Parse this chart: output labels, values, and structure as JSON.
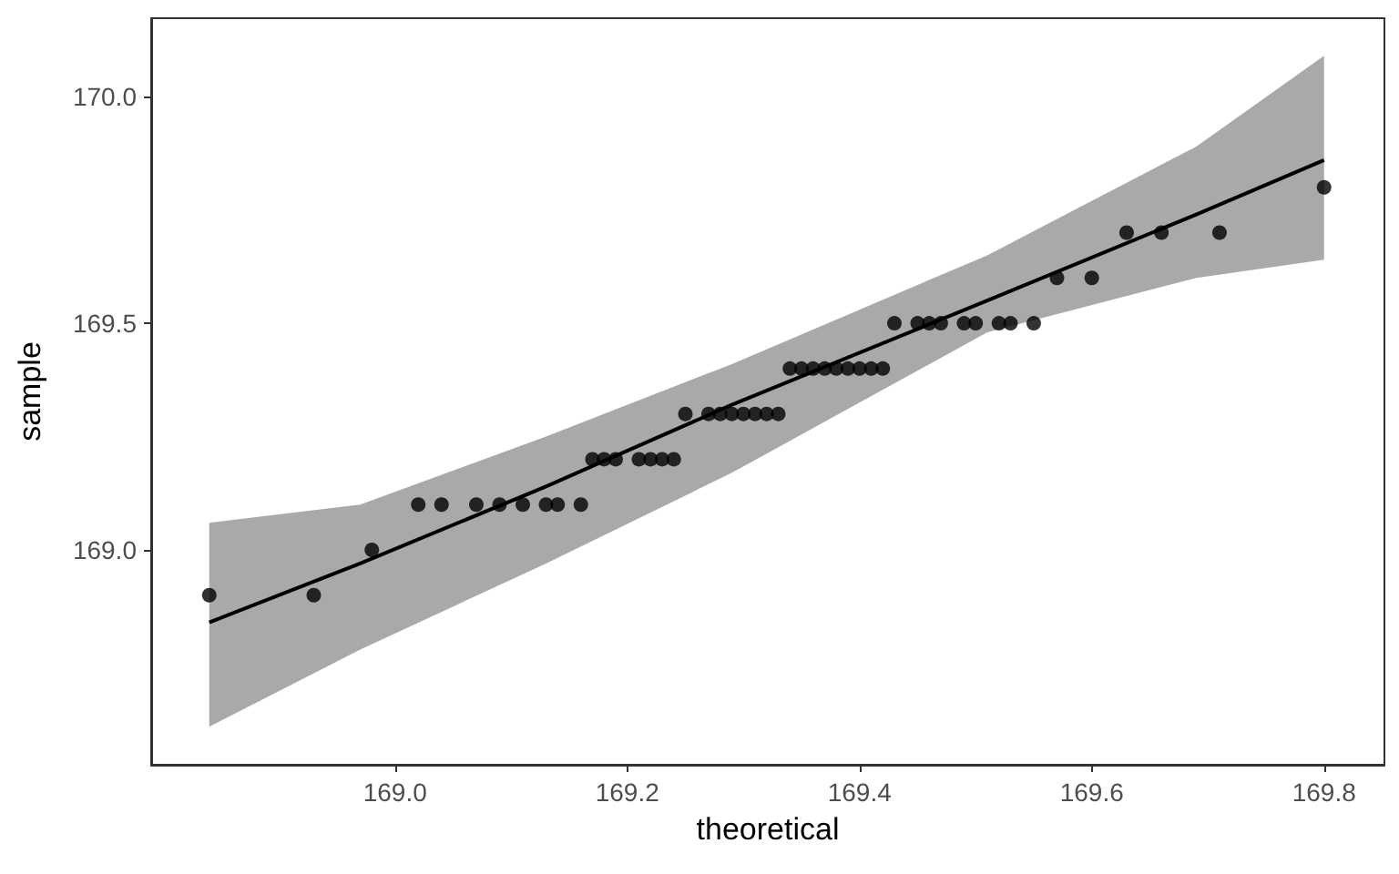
{
  "chart_data": {
    "type": "scatter",
    "xlabel": "theoretical",
    "ylabel": "sample",
    "series": [
      {
        "color": "#000000",
        "marker": "circle",
        "x": [
          168.84,
          168.93,
          168.98,
          169.02,
          169.04,
          169.07,
          169.09,
          169.11,
          169.13,
          169.14,
          169.16,
          169.17,
          169.18,
          169.19,
          169.21,
          169.22,
          169.23,
          169.24,
          169.25,
          169.27,
          169.28,
          169.29,
          169.3,
          169.31,
          169.32,
          169.33,
          169.34,
          169.35,
          169.36,
          169.37,
          169.38,
          169.39,
          169.4,
          169.41,
          169.42,
          169.43,
          169.45,
          169.46,
          169.47,
          169.49,
          169.5,
          169.52,
          169.53,
          169.55,
          169.57,
          169.6,
          169.63,
          169.66,
          169.71,
          169.8
        ],
        "values": [
          168.9,
          168.9,
          169.0,
          169.1,
          169.1,
          169.1,
          169.1,
          169.1,
          169.1,
          169.1,
          169.1,
          169.2,
          169.2,
          169.2,
          169.2,
          169.2,
          169.2,
          169.2,
          169.3,
          169.3,
          169.3,
          169.3,
          169.3,
          169.3,
          169.3,
          169.3,
          169.4,
          169.4,
          169.4,
          169.4,
          169.4,
          169.4,
          169.4,
          169.4,
          169.4,
          169.5,
          169.5,
          169.5,
          169.5,
          169.5,
          169.5,
          169.5,
          169.5,
          169.5,
          169.6,
          169.6,
          169.7,
          169.7,
          169.7,
          169.8
        ]
      },
      {
        "type": "line",
        "color": "#000000",
        "marker": "none",
        "x": [
          168.84,
          168.97,
          169.13,
          169.29,
          169.51,
          169.69,
          169.8
        ],
        "values": [
          168.84,
          168.97,
          169.14,
          169.32,
          169.55,
          169.74,
          169.86
        ],
        "lower": [
          168.61,
          168.78,
          168.97,
          169.17,
          169.48,
          169.6,
          169.64
        ],
        "upper": [
          169.06,
          169.1,
          169.25,
          169.41,
          169.65,
          169.89,
          170.09
        ]
      }
    ],
    "xlim": [
      168.79,
      169.852
    ],
    "xticks": [
      {
        "value": 169.0,
        "label": "169.0"
      },
      {
        "value": 169.2,
        "label": "169.2"
      },
      {
        "value": 169.4,
        "label": "169.4"
      },
      {
        "value": 169.6,
        "label": "169.6"
      },
      {
        "value": 169.8,
        "label": "169.8"
      }
    ],
    "ylim": [
      168.526,
      170.173
    ],
    "yticks": [
      {
        "value": 169.0,
        "label": "169.0"
      },
      {
        "value": 169.5,
        "label": "169.5"
      },
      {
        "value": 170.0,
        "label": "170.0"
      }
    ],
    "grid": false,
    "line_style": "solid"
  }
}
